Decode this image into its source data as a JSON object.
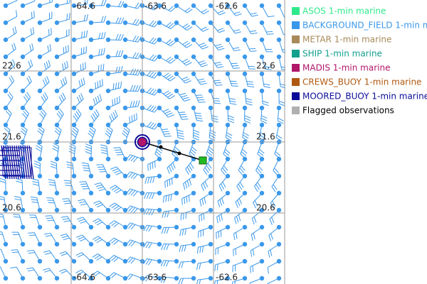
{
  "map": {
    "lon_labels": [
      "-64.6",
      "-63.6",
      "-62.6"
    ],
    "lat_labels": [
      "22.6",
      "21.6",
      "20.6"
    ],
    "legend": [
      {
        "name": "ASOS 1-min marine",
        "color": "#2fe88a"
      },
      {
        "name": "BACKGROUND_FIELD 1-min m",
        "color": "#3a98ea"
      },
      {
        "name": "METAR 1-min marine",
        "color": "#a88a5a"
      },
      {
        "name": "SHIP 1-min marine",
        "color": "#12a08e"
      },
      {
        "name": "MADIS 1-min marine",
        "color": "#b0166a"
      },
      {
        "name": "CREWS_BUOY 1-min marine",
        "color": "#b0580f"
      },
      {
        "name": "MOORED_BUOY 1-min marine",
        "color": "#0b0b9a"
      },
      {
        "name": "Flagged observations",
        "color": "#b0b0b0"
      }
    ]
  }
}
